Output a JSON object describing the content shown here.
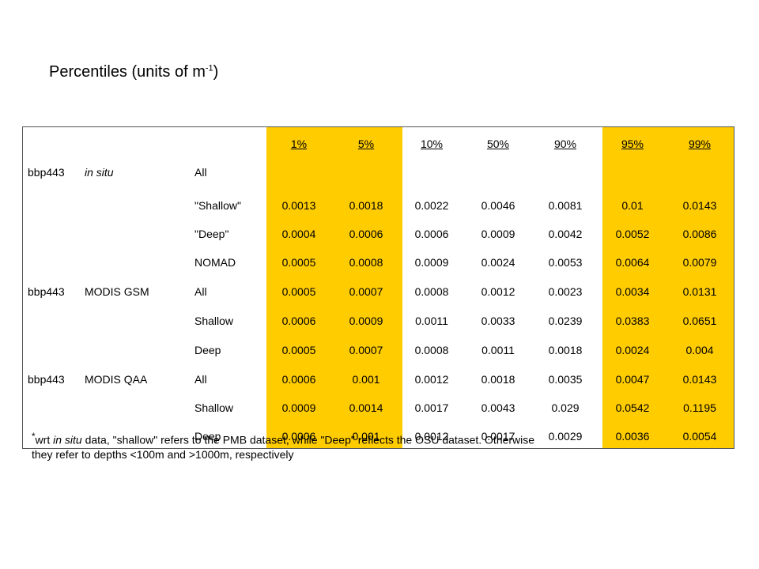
{
  "title": {
    "text": "Percentiles (units of m",
    "superscript": "-1",
    "suffix": ")"
  },
  "columns": [
    "1%",
    "5%",
    "10%",
    "50%",
    "90%",
    "95%",
    "99%"
  ],
  "rows": [
    {
      "param": "bbp443",
      "source": "in situ",
      "source_italic": true,
      "subset": "All",
      "values": [
        "",
        "",
        "",
        "",
        "",
        "",
        ""
      ]
    },
    {
      "param": "",
      "source": "",
      "subset": "\"Shallow\"",
      "values": [
        "0.0013",
        "0.0018",
        "0.0022",
        "0.0046",
        "0.0081",
        "0.01",
        "0.0143"
      ]
    },
    {
      "param": "",
      "source": "",
      "subset": "\"Deep\"",
      "values": [
        "0.0004",
        "0.0006",
        "0.0006",
        "0.0009",
        "0.0042",
        "0.0052",
        "0.0086"
      ]
    },
    {
      "param": "",
      "source": "",
      "subset": "NOMAD",
      "values": [
        "0.0005",
        "0.0008",
        "0.0009",
        "0.0024",
        "0.0053",
        "0.0064",
        "0.0079"
      ]
    },
    {
      "param": "bbp443",
      "source": "MODIS GSM",
      "subset": "All",
      "values": [
        "0.0005",
        "0.0007",
        "0.0008",
        "0.0012",
        "0.0023",
        "0.0034",
        "0.0131"
      ]
    },
    {
      "param": "",
      "source": "",
      "subset": "Shallow",
      "values": [
        "0.0006",
        "0.0009",
        "0.0011",
        "0.0033",
        "0.0239",
        "0.0383",
        "0.0651"
      ]
    },
    {
      "param": "",
      "source": "",
      "subset": "Deep",
      "values": [
        "0.0005",
        "0.0007",
        "0.0008",
        "0.0011",
        "0.0018",
        "0.0024",
        "0.004"
      ]
    },
    {
      "param": "bbp443",
      "source": "MODIS QAA",
      "subset": "All",
      "values": [
        "0.0006",
        "0.001",
        "0.0012",
        "0.0018",
        "0.0035",
        "0.0047",
        "0.0143"
      ]
    },
    {
      "param": "",
      "source": "",
      "subset": "Shallow",
      "values": [
        "0.0009",
        "0.0014",
        "0.0017",
        "0.0043",
        "0.029",
        "0.0542",
        "0.1195"
      ]
    },
    {
      "param": "",
      "source": "",
      "subset": "Deep",
      "values": [
        "0.0006",
        "0.001",
        "0.0012",
        "0.0017",
        "0.0029",
        "0.0036",
        "0.0054"
      ]
    }
  ],
  "footnote": {
    "marker": "*",
    "line1_prefix": "wrt ",
    "line1_italic": "in situ",
    "line1_rest": " data, \"shallow\" refers to the PMB dataset, while \"Deep\" reflects the OSU dataset.  Otherwise",
    "line2": "they refer to depths <100m and >1000m, respectively"
  },
  "colors": {
    "highlight": "#ffcc00",
    "border": "#555555"
  }
}
